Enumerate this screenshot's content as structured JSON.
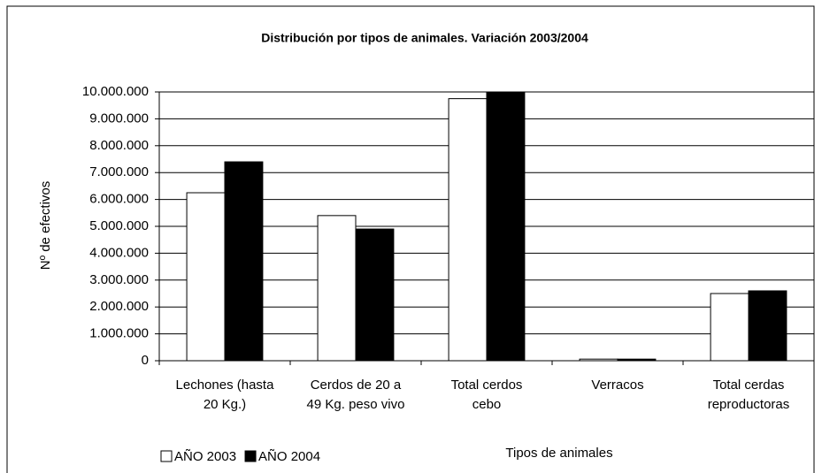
{
  "chart_data": {
    "type": "bar",
    "title": "Distribución por tipos de animales. Variación 2003/2004",
    "y_label": "Nº de efectivos",
    "x_label": "Tipos de animales",
    "categories": [
      [
        "Lechones (hasta",
        "20 Kg.)"
      ],
      [
        "Cerdos de 20 a",
        "49 Kg. peso vivo"
      ],
      [
        "Total cerdos",
        "cebo"
      ],
      [
        "Verracos"
      ],
      [
        "Total cerdas",
        "reproductoras"
      ]
    ],
    "series": [
      {
        "name": "AÑO 2003",
        "color": "#ffffff",
        "values": [
          6250000,
          5400000,
          9750000,
          60000,
          2500000
        ]
      },
      {
        "name": "AÑO 2004",
        "color": "#000000",
        "values": [
          7400000,
          4900000,
          10000000,
          60000,
          2600000
        ]
      }
    ],
    "ylim": [
      0,
      10000000
    ],
    "yticks": [
      0,
      {
        "value": 1000000,
        "label": "1.000.000"
      },
      {
        "value": 2000000,
        "label": "2.000.000"
      },
      {
        "value": 3000000,
        "label": "3.000.000"
      },
      {
        "value": 4000000,
        "label": "4.000.000"
      },
      {
        "value": 5000000,
        "label": "5.000.000"
      },
      {
        "value": 6000000,
        "label": "6.000.000"
      },
      {
        "value": 7000000,
        "label": "7.000.000"
      },
      {
        "value": 8000000,
        "label": "8.000.000"
      },
      {
        "value": 9000000,
        "label": "9.000.000"
      },
      {
        "value": 10000000,
        "label": "10.000.000"
      }
    ],
    "grid": true
  }
}
